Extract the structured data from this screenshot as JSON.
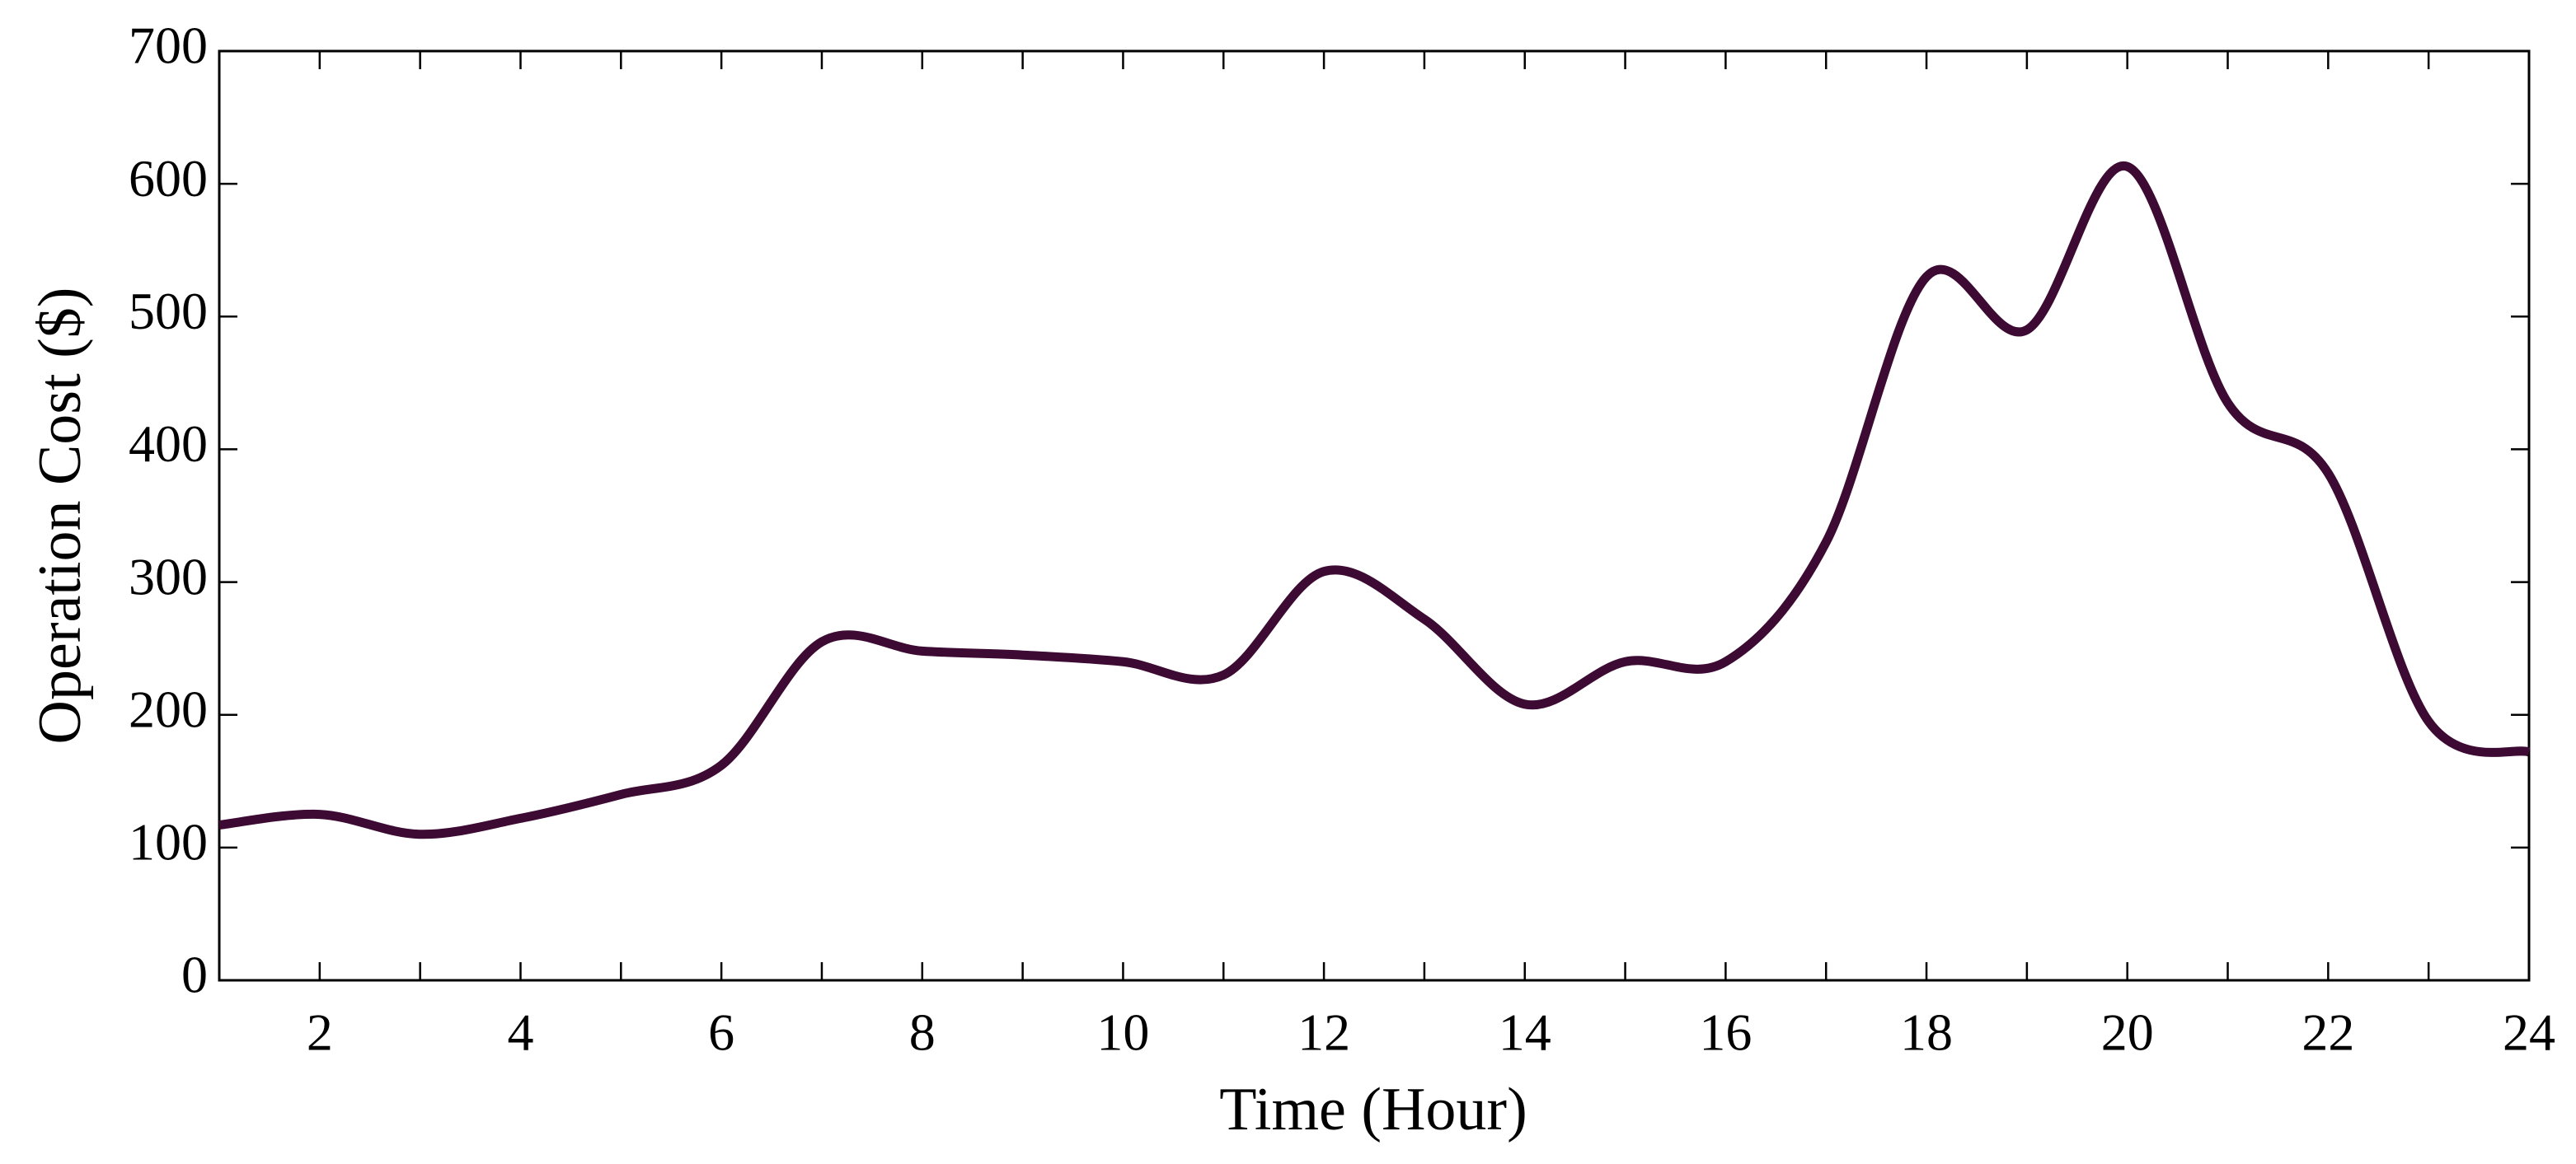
{
  "chart_data": {
    "type": "line",
    "x": [
      1,
      2,
      3,
      4,
      5,
      6,
      7,
      8,
      9,
      10,
      11,
      12,
      13,
      14,
      15,
      16,
      17,
      18,
      19,
      20,
      21,
      22,
      23,
      24
    ],
    "series": [
      {
        "name": "Operation Cost",
        "color": "#3d0a33",
        "values": [
          117,
          125,
          110,
          122,
          140,
          162,
          255,
          248,
          245,
          240,
          230,
          308,
          272,
          208,
          240,
          240,
          330,
          530,
          490,
          613,
          435,
          382,
          195,
          172
        ]
      }
    ],
    "xlabel": "Time (Hour)",
    "ylabel": "Operation Cost ($)",
    "xlim": [
      1,
      24
    ],
    "ylim": [
      0,
      700
    ],
    "xticks": [
      2,
      4,
      6,
      8,
      10,
      12,
      14,
      16,
      18,
      20,
      22,
      24
    ],
    "xminorticks": [
      1,
      3,
      5,
      7,
      9,
      11,
      13,
      15,
      17,
      19,
      21,
      23
    ],
    "yticks": [
      0,
      100,
      200,
      300,
      400,
      500,
      600,
      700
    ],
    "grid": false
  }
}
